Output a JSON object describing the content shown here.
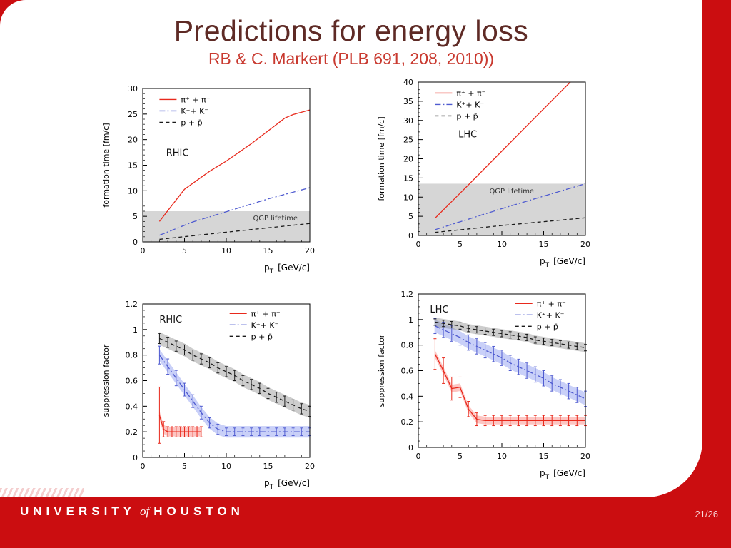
{
  "slide": {
    "title": "Predictions for energy loss",
    "subtitle": "RB & C. Markert (PLB 691, 208, 2010))",
    "page_number": "21/26",
    "footer": {
      "university": "UNIVERSITY",
      "of_word": "of",
      "houston": "HOUSTON"
    }
  },
  "colors": {
    "slide_red": "#cb0d10",
    "title_maroon": "#5e2a25",
    "subtitle_red": "#c93a30",
    "chart_red": "#e8291c",
    "chart_blue": "#4f5bd0",
    "chart_black": "#1a1a1a",
    "qgp_gray": "#d6d6d6"
  },
  "chart_data": [
    {
      "id": "formation-time-rhic",
      "type": "line",
      "region_label": "RHIC",
      "region_label_pos": [
        0.14,
        0.44
      ],
      "legend_pos": [
        0.1,
        0.03
      ],
      "ylabel": "formation time [fm/c]",
      "xlabel_base": "p",
      "xlabel_sub": "T",
      "xlabel_units": "[GeV/c]",
      "xlim": [
        0,
        20
      ],
      "ylim": [
        0,
        30
      ],
      "xticks": [
        0,
        5,
        10,
        15,
        20
      ],
      "yticks": [
        0,
        5,
        10,
        15,
        20,
        25,
        30
      ],
      "x_minor": 1,
      "y_minor": 1,
      "qgp_band": {
        "ymax": 6,
        "color": "#d6d6d6",
        "label": "QGP lifetime",
        "label_x": 13.2,
        "label_y": 4.2
      },
      "series": [
        {
          "name": "π⁺ + π⁻",
          "color": "#e8291c",
          "dash": "solid",
          "points": [
            [
              2,
              4
            ],
            [
              5,
              10.3
            ],
            [
              8,
              13.8
            ],
            [
              10,
              15.8
            ],
            [
              13,
              19.2
            ],
            [
              15,
              21.7
            ],
            [
              17,
              24.2
            ],
            [
              18,
              24.9
            ],
            [
              20,
              25.8
            ]
          ]
        },
        {
          "name": "K⁺+ K⁻",
          "color": "#4f5bd0",
          "dash": "dashdot",
          "points": [
            [
              2,
              1.3
            ],
            [
              6,
              3.9
            ],
            [
              10,
              5.9
            ],
            [
              15,
              8.4
            ],
            [
              20,
              10.6
            ]
          ]
        },
        {
          "name": "p + p̄",
          "color": "#1a1a1a",
          "dash": "dashed",
          "points": [
            [
              2,
              0.5
            ],
            [
              10,
              1.9
            ],
            [
              20,
              3.6
            ]
          ]
        }
      ]
    },
    {
      "id": "formation-time-lhc",
      "type": "line",
      "region_label": "LHC",
      "region_label_pos": [
        0.24,
        0.36
      ],
      "legend_pos": [
        0.1,
        0.03
      ],
      "ylabel": "formation time [fm/c]",
      "xlabel_base": "p",
      "xlabel_sub": "T",
      "xlabel_units": "[GeV/c]",
      "xlim": [
        0,
        20
      ],
      "ylim": [
        0,
        40
      ],
      "xticks": [
        0,
        5,
        10,
        15,
        20
      ],
      "yticks": [
        0,
        5,
        10,
        15,
        20,
        25,
        30,
        35,
        40
      ],
      "x_minor": 1,
      "y_minor": 1,
      "qgp_band": {
        "ymax": 13.5,
        "color": "#d6d6d6",
        "label": "QGP lifetime",
        "label_x": 8.5,
        "label_y": 11
      },
      "series": [
        {
          "name": "π⁺ + π⁻",
          "color": "#e8291c",
          "dash": "solid",
          "points": [
            [
              2,
              4.5
            ],
            [
              6,
              13.2
            ],
            [
              10,
              22
            ],
            [
              14,
              30.8
            ],
            [
              18.2,
              40
            ]
          ]
        },
        {
          "name": "K⁺+ K⁻",
          "color": "#4f5bd0",
          "dash": "dashdot",
          "points": [
            [
              2,
              1.5
            ],
            [
              10,
              7
            ],
            [
              20,
              13.5
            ]
          ]
        },
        {
          "name": "p + p̄",
          "color": "#1a1a1a",
          "dash": "dashed",
          "points": [
            [
              2,
              0.8
            ],
            [
              10,
              2.6
            ],
            [
              20,
              4.6
            ]
          ]
        }
      ]
    },
    {
      "id": "suppression-factor-rhic",
      "type": "line",
      "region_label": "RHIC",
      "region_label_pos": [
        0.1,
        0.12
      ],
      "legend_pos": [
        0.52,
        0.02
      ],
      "ylabel": "suppression factor",
      "xlabel_base": "p",
      "xlabel_sub": "T",
      "xlabel_units": "[GeV/c]",
      "xlim": [
        0,
        20
      ],
      "ylim": [
        0,
        1.2
      ],
      "xticks": [
        0,
        5,
        10,
        15,
        20
      ],
      "yticks": [
        0,
        0.2,
        0.4,
        0.6,
        0.8,
        1,
        1.2
      ],
      "x_minor": 1,
      "y_minor": 0.05,
      "series": [
        {
          "name": "π⁺ + π⁻",
          "color": "#e8291c",
          "dash": "solid",
          "band": 0.035,
          "band_color": "rgba(250,90,80,0.35)",
          "points": [
            [
              2,
              0.33,
              0.22
            ],
            [
              2.5,
              0.22,
              0.06
            ],
            [
              3,
              0.2,
              0.04
            ],
            [
              3.5,
              0.2,
              0.04
            ],
            [
              4,
              0.2,
              0.04
            ],
            [
              4.5,
              0.2,
              0.04
            ],
            [
              5,
              0.2,
              0.04
            ],
            [
              5.5,
              0.2,
              0.04
            ],
            [
              6,
              0.2,
              0.04
            ],
            [
              6.5,
              0.2,
              0.04
            ],
            [
              7,
              0.2,
              0.04
            ]
          ]
        },
        {
          "name": "K⁺+ K⁻",
          "color": "#4f5bd0",
          "dash": "dashdot",
          "band": 0.045,
          "band_color": "rgba(100,120,235,0.35)",
          "points": [
            [
              2,
              0.8,
              0.07
            ],
            [
              3,
              0.71,
              0.06
            ],
            [
              4,
              0.62,
              0.06
            ],
            [
              5,
              0.53,
              0.05
            ],
            [
              6,
              0.44,
              0.05
            ],
            [
              7,
              0.35,
              0.05
            ],
            [
              8,
              0.27,
              0.04
            ],
            [
              9,
              0.22,
              0.04
            ],
            [
              10,
              0.2,
              0.03
            ],
            [
              11,
              0.2,
              0.03
            ],
            [
              12,
              0.2,
              0.03
            ],
            [
              13,
              0.2,
              0.03
            ],
            [
              14,
              0.2,
              0.03
            ],
            [
              15,
              0.2,
              0.03
            ],
            [
              16,
              0.2,
              0.03
            ],
            [
              17,
              0.2,
              0.03
            ],
            [
              18,
              0.2,
              0.03
            ],
            [
              19,
              0.2,
              0.03
            ],
            [
              20,
              0.2,
              0.03
            ]
          ]
        },
        {
          "name": "p + p̄",
          "color": "#1a1a1a",
          "dash": "dashed",
          "band": 0.05,
          "band_color": "rgba(130,130,130,0.40)",
          "points": [
            [
              2,
              0.93,
              0.04
            ],
            [
              3,
              0.9,
              0.04
            ],
            [
              4,
              0.87,
              0.04
            ],
            [
              5,
              0.84,
              0.04
            ],
            [
              6,
              0.8,
              0.04
            ],
            [
              7,
              0.77,
              0.04
            ],
            [
              8,
              0.74,
              0.04
            ],
            [
              9,
              0.7,
              0.04
            ],
            [
              10,
              0.67,
              0.04
            ],
            [
              11,
              0.64,
              0.04
            ],
            [
              12,
              0.6,
              0.04
            ],
            [
              13,
              0.57,
              0.04
            ],
            [
              14,
              0.54,
              0.04
            ],
            [
              15,
              0.5,
              0.04
            ],
            [
              16,
              0.47,
              0.04
            ],
            [
              17,
              0.44,
              0.04
            ],
            [
              18,
              0.41,
              0.04
            ],
            [
              19,
              0.38,
              0.04
            ],
            [
              20,
              0.36,
              0.04
            ]
          ]
        }
      ]
    },
    {
      "id": "suppression-factor-lhc",
      "type": "line",
      "region_label": "LHC",
      "region_label_pos": [
        0.07,
        0.12
      ],
      "legend_pos": [
        0.58,
        0.02
      ],
      "ylabel": "suppression factor",
      "xlabel_base": "p",
      "xlabel_sub": "T",
      "xlabel_units": "[GeV/c]",
      "xlim": [
        0,
        20
      ],
      "ylim": [
        0,
        1.2
      ],
      "xticks": [
        0,
        5,
        10,
        15,
        20
      ],
      "yticks": [
        0,
        0.2,
        0.4,
        0.6,
        0.8,
        1,
        1.2
      ],
      "x_minor": 1,
      "y_minor": 0.05,
      "series": [
        {
          "name": "π⁺ + π⁻",
          "color": "#e8291c",
          "dash": "solid",
          "band": 0.03,
          "band_color": "rgba(250,90,80,0.35)",
          "points": [
            [
              2,
              0.73,
              0.12
            ],
            [
              3,
              0.6,
              0.1
            ],
            [
              4,
              0.46,
              0.09
            ],
            [
              5,
              0.47,
              0.08
            ],
            [
              6,
              0.3,
              0.06
            ],
            [
              7,
              0.22,
              0.05
            ],
            [
              8,
              0.21,
              0.04
            ],
            [
              9,
              0.21,
              0.04
            ],
            [
              10,
              0.21,
              0.04
            ],
            [
              11,
              0.21,
              0.04
            ],
            [
              12,
              0.21,
              0.04
            ],
            [
              13,
              0.21,
              0.04
            ],
            [
              14,
              0.21,
              0.04
            ],
            [
              15,
              0.21,
              0.04
            ],
            [
              16,
              0.21,
              0.04
            ],
            [
              17,
              0.21,
              0.04
            ],
            [
              18,
              0.21,
              0.04
            ],
            [
              19,
              0.21,
              0.04
            ],
            [
              20,
              0.21,
              0.04
            ]
          ]
        },
        {
          "name": "K⁺+ K⁻",
          "color": "#4f5bd0",
          "dash": "dashdot",
          "band": 0.05,
          "band_color": "rgba(100,120,235,0.35)",
          "points": [
            [
              2,
              0.95,
              0.06
            ],
            [
              3,
              0.92,
              0.06
            ],
            [
              4,
              0.89,
              0.06
            ],
            [
              5,
              0.86,
              0.06
            ],
            [
              6,
              0.82,
              0.06
            ],
            [
              7,
              0.79,
              0.06
            ],
            [
              8,
              0.76,
              0.06
            ],
            [
              9,
              0.73,
              0.06
            ],
            [
              10,
              0.7,
              0.06
            ],
            [
              11,
              0.66,
              0.06
            ],
            [
              12,
              0.63,
              0.06
            ],
            [
              13,
              0.6,
              0.06
            ],
            [
              14,
              0.57,
              0.06
            ],
            [
              15,
              0.54,
              0.06
            ],
            [
              16,
              0.5,
              0.06
            ],
            [
              17,
              0.47,
              0.06
            ],
            [
              18,
              0.44,
              0.06
            ],
            [
              19,
              0.41,
              0.06
            ],
            [
              20,
              0.38,
              0.06
            ]
          ]
        },
        {
          "name": "p + p̄",
          "color": "#1a1a1a",
          "dash": "dashed",
          "band": 0.035,
          "band_color": "rgba(130,130,130,0.40)",
          "points": [
            [
              2,
              0.98,
              0.025
            ],
            [
              3,
              0.97,
              0.025
            ],
            [
              4,
              0.96,
              0.025
            ],
            [
              5,
              0.95,
              0.025
            ],
            [
              6,
              0.93,
              0.025
            ],
            [
              7,
              0.92,
              0.025
            ],
            [
              8,
              0.91,
              0.025
            ],
            [
              9,
              0.9,
              0.025
            ],
            [
              10,
              0.89,
              0.025
            ],
            [
              11,
              0.88,
              0.025
            ],
            [
              12,
              0.87,
              0.025
            ],
            [
              13,
              0.86,
              0.025
            ],
            [
              14,
              0.84,
              0.025
            ],
            [
              15,
              0.83,
              0.025
            ],
            [
              16,
              0.82,
              0.025
            ],
            [
              17,
              0.81,
              0.025
            ],
            [
              18,
              0.8,
              0.025
            ],
            [
              19,
              0.79,
              0.025
            ],
            [
              20,
              0.78,
              0.025
            ]
          ]
        }
      ]
    }
  ]
}
